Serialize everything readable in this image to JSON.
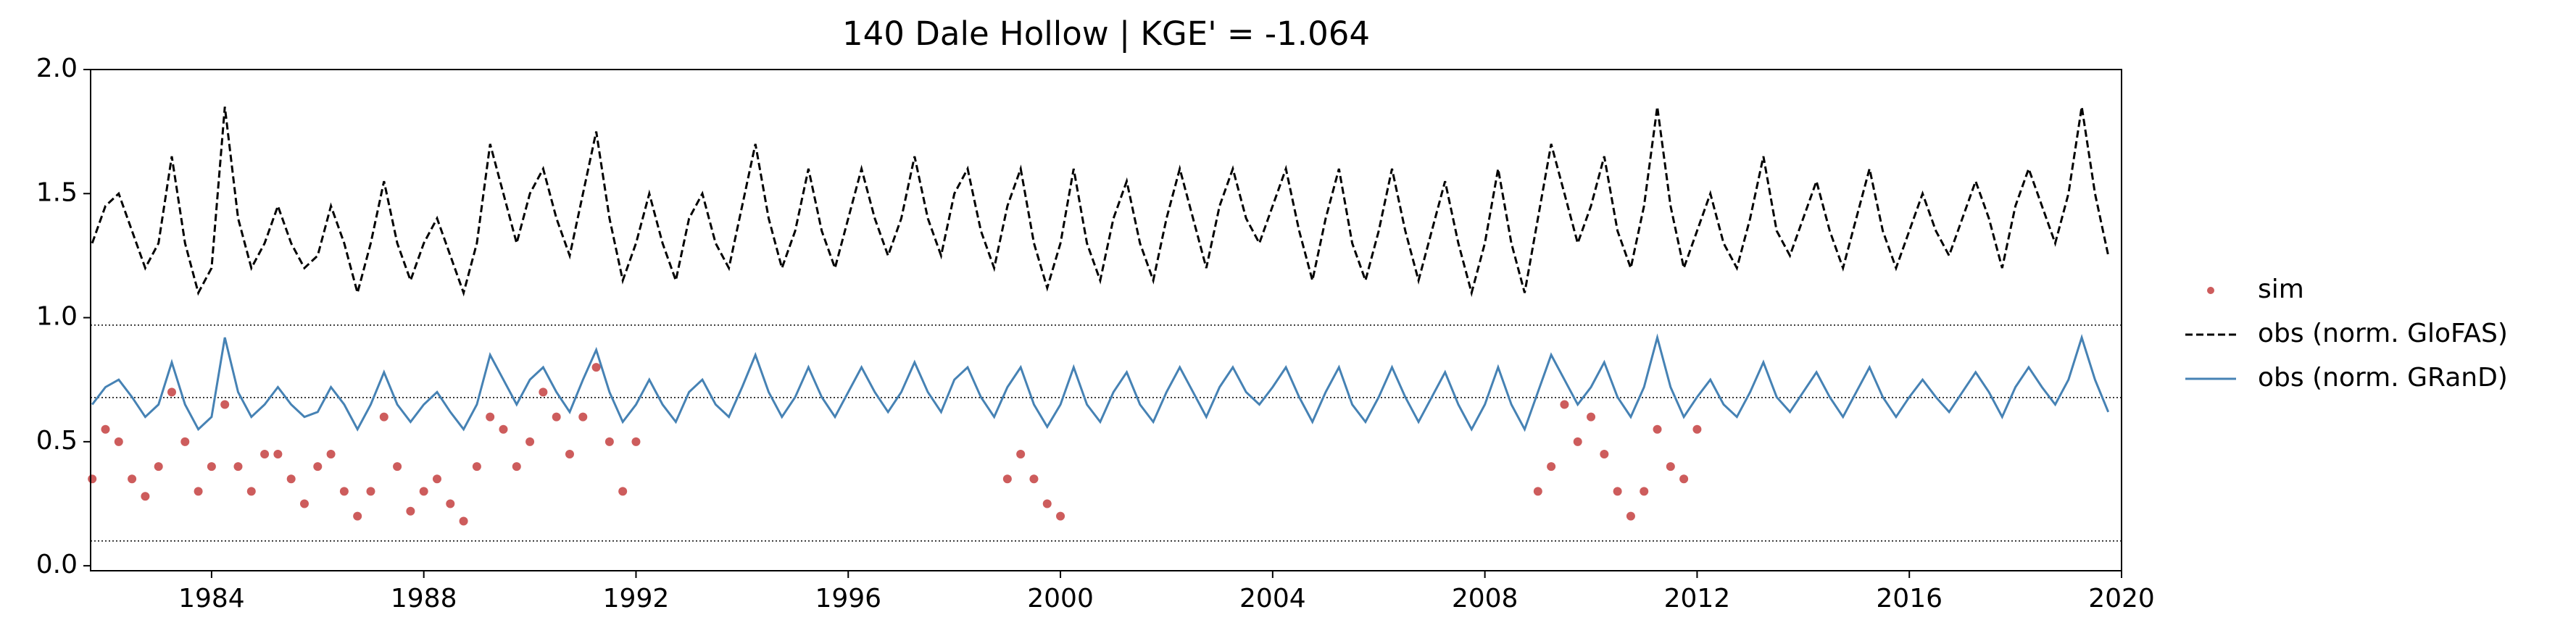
{
  "chart_data": {
    "type": "line",
    "title": "140  Dale Hollow | KGE' = -1.064",
    "xlim": [
      1981.72,
      2020
    ],
    "xticks": [
      1984,
      1988,
      1992,
      1996,
      2000,
      2004,
      2008,
      2012,
      2016,
      2020
    ],
    "ylim": [
      -0.02,
      2.0
    ],
    "yticks": [
      {
        "value": 0,
        "label": "0.0"
      },
      0.5,
      {
        "value": 1,
        "label": "1.0"
      },
      1.5,
      {
        "value": 2,
        "label": "2.0"
      }
    ],
    "hlines": [
      0.97,
      0.678,
      0.1
    ],
    "x": [
      1981.75,
      1982,
      1982.25,
      1982.5,
      1982.75,
      1983,
      1983.25,
      1983.5,
      1983.75,
      1984,
      1984.25,
      1984.5,
      1984.75,
      1985,
      1985.25,
      1985.5,
      1985.75,
      1986,
      1986.25,
      1986.5,
      1986.75,
      1987,
      1987.25,
      1987.5,
      1987.75,
      1988,
      1988.25,
      1988.5,
      1988.75,
      1989,
      1989.25,
      1989.5,
      1989.75,
      1990,
      1990.25,
      1990.5,
      1990.75,
      1991,
      1991.25,
      1991.5,
      1991.75,
      1992,
      1992.25,
      1992.5,
      1992.75,
      1993,
      1993.25,
      1993.5,
      1993.75,
      1994,
      1994.25,
      1994.5,
      1994.75,
      1995,
      1995.25,
      1995.5,
      1995.75,
      1996,
      1996.25,
      1996.5,
      1996.75,
      1997,
      1997.25,
      1997.5,
      1997.75,
      1998,
      1998.25,
      1998.5,
      1998.75,
      1999,
      1999.25,
      1999.5,
      1999.75,
      2000,
      2000.25,
      2000.5,
      2000.75,
      2001,
      2001.25,
      2001.5,
      2001.75,
      2002,
      2002.25,
      2002.5,
      2002.75,
      2003,
      2003.25,
      2003.5,
      2003.75,
      2004,
      2004.25,
      2004.5,
      2004.75,
      2005,
      2005.25,
      2005.5,
      2005.75,
      2006,
      2006.25,
      2006.5,
      2006.75,
      2007,
      2007.25,
      2007.5,
      2007.75,
      2008,
      2008.25,
      2008.5,
      2008.75,
      2009,
      2009.25,
      2009.5,
      2009.75,
      2010,
      2010.25,
      2010.5,
      2010.75,
      2011,
      2011.25,
      2011.5,
      2011.75,
      2012,
      2012.25,
      2012.5,
      2012.75,
      2013,
      2013.25,
      2013.5,
      2013.75,
      2014,
      2014.25,
      2014.5,
      2014.75,
      2015,
      2015.25,
      2015.5,
      2015.75,
      2016,
      2016.25,
      2016.5,
      2016.75,
      2017,
      2017.25,
      2017.5,
      2017.75,
      2018,
      2018.25,
      2018.5,
      2018.75,
      2019,
      2019.25,
      2019.5,
      2019.75
    ],
    "series": [
      {
        "name": "sim",
        "color": "#cd5c5c",
        "style": "points",
        "values": [
          0.35,
          0.55,
          0.5,
          0.35,
          0.28,
          0.4,
          0.7,
          0.5,
          0.3,
          0.4,
          0.65,
          0.4,
          0.3,
          0.45,
          0.45,
          0.35,
          0.25,
          0.4,
          0.45,
          0.3,
          0.2,
          0.3,
          0.6,
          0.4,
          0.22,
          0.3,
          0.35,
          0.25,
          0.18,
          0.4,
          0.6,
          0.55,
          0.4,
          0.5,
          0.7,
          0.6,
          0.45,
          0.6,
          0.8,
          0.5,
          0.3,
          0.5,
          null,
          null,
          null,
          null,
          null,
          null,
          null,
          null,
          null,
          null,
          null,
          null,
          null,
          null,
          null,
          null,
          null,
          null,
          null,
          null,
          null,
          null,
          null,
          null,
          null,
          null,
          null,
          0.35,
          0.45,
          0.35,
          0.25,
          0.2,
          null,
          null,
          null,
          null,
          null,
          null,
          null,
          null,
          null,
          null,
          null,
          null,
          null,
          null,
          null,
          null,
          null,
          null,
          null,
          null,
          null,
          null,
          null,
          null,
          null,
          null,
          null,
          null,
          null,
          null,
          null,
          null,
          null,
          null,
          null,
          0.3,
          0.4,
          0.65,
          0.5,
          0.6,
          0.45,
          0.3,
          0.2,
          0.3,
          0.55,
          0.4,
          0.35,
          0.55,
          null,
          null,
          null,
          null,
          null,
          null,
          null,
          null,
          null,
          null,
          null,
          null,
          null,
          null,
          null,
          null,
          null,
          null,
          null,
          null,
          null,
          null,
          null,
          null,
          null,
          null,
          null,
          null,
          null,
          null,
          null
        ]
      },
      {
        "name": "obs (norm. GloFAS)",
        "color": "#000000",
        "style": "dashed",
        "values": [
          1.3,
          1.45,
          1.5,
          1.35,
          1.2,
          1.3,
          1.65,
          1.3,
          1.1,
          1.2,
          1.85,
          1.4,
          1.2,
          1.3,
          1.45,
          1.3,
          1.2,
          1.25,
          1.45,
          1.3,
          1.1,
          1.3,
          1.55,
          1.3,
          1.15,
          1.3,
          1.4,
          1.25,
          1.1,
          1.3,
          1.7,
          1.5,
          1.3,
          1.5,
          1.6,
          1.4,
          1.25,
          1.5,
          1.75,
          1.4,
          1.15,
          1.3,
          1.5,
          1.3,
          1.15,
          1.4,
          1.5,
          1.3,
          1.2,
          1.45,
          1.7,
          1.4,
          1.2,
          1.35,
          1.6,
          1.35,
          1.2,
          1.4,
          1.6,
          1.4,
          1.25,
          1.4,
          1.65,
          1.4,
          1.25,
          1.5,
          1.6,
          1.35,
          1.2,
          1.45,
          1.6,
          1.3,
          1.12,
          1.3,
          1.6,
          1.3,
          1.15,
          1.4,
          1.55,
          1.3,
          1.15,
          1.4,
          1.6,
          1.4,
          1.2,
          1.45,
          1.6,
          1.4,
          1.3,
          1.45,
          1.6,
          1.35,
          1.15,
          1.4,
          1.6,
          1.3,
          1.15,
          1.35,
          1.6,
          1.35,
          1.15,
          1.35,
          1.55,
          1.3,
          1.1,
          1.3,
          1.6,
          1.3,
          1.1,
          1.4,
          1.7,
          1.5,
          1.3,
          1.45,
          1.65,
          1.35,
          1.2,
          1.45,
          1.85,
          1.45,
          1.2,
          1.35,
          1.5,
          1.3,
          1.2,
          1.4,
          1.65,
          1.35,
          1.25,
          1.4,
          1.55,
          1.35,
          1.2,
          1.4,
          1.6,
          1.35,
          1.2,
          1.35,
          1.5,
          1.35,
          1.25,
          1.4,
          1.55,
          1.4,
          1.2,
          1.45,
          1.6,
          1.45,
          1.3,
          1.5,
          1.85,
          1.5,
          1.25
        ]
      },
      {
        "name": "obs (norm. GRanD)",
        "color": "#4682b4",
        "style": "solid",
        "values": [
          0.65,
          0.72,
          0.75,
          0.68,
          0.6,
          0.65,
          0.82,
          0.65,
          0.55,
          0.6,
          0.92,
          0.7,
          0.6,
          0.65,
          0.72,
          0.65,
          0.6,
          0.62,
          0.72,
          0.65,
          0.55,
          0.65,
          0.78,
          0.65,
          0.58,
          0.65,
          0.7,
          0.62,
          0.55,
          0.65,
          0.85,
          0.75,
          0.65,
          0.75,
          0.8,
          0.7,
          0.62,
          0.75,
          0.87,
          0.7,
          0.58,
          0.65,
          0.75,
          0.65,
          0.58,
          0.7,
          0.75,
          0.65,
          0.6,
          0.72,
          0.85,
          0.7,
          0.6,
          0.68,
          0.8,
          0.68,
          0.6,
          0.7,
          0.8,
          0.7,
          0.62,
          0.7,
          0.82,
          0.7,
          0.62,
          0.75,
          0.8,
          0.68,
          0.6,
          0.72,
          0.8,
          0.65,
          0.56,
          0.65,
          0.8,
          0.65,
          0.58,
          0.7,
          0.78,
          0.65,
          0.58,
          0.7,
          0.8,
          0.7,
          0.6,
          0.72,
          0.8,
          0.7,
          0.65,
          0.72,
          0.8,
          0.68,
          0.58,
          0.7,
          0.8,
          0.65,
          0.58,
          0.68,
          0.8,
          0.68,
          0.58,
          0.68,
          0.78,
          0.65,
          0.55,
          0.65,
          0.8,
          0.65,
          0.55,
          0.7,
          0.85,
          0.75,
          0.65,
          0.72,
          0.82,
          0.68,
          0.6,
          0.72,
          0.92,
          0.72,
          0.6,
          0.68,
          0.75,
          0.65,
          0.6,
          0.7,
          0.82,
          0.68,
          0.62,
          0.7,
          0.78,
          0.68,
          0.6,
          0.7,
          0.8,
          0.68,
          0.6,
          0.68,
          0.75,
          0.68,
          0.62,
          0.7,
          0.78,
          0.7,
          0.6,
          0.72,
          0.8,
          0.72,
          0.65,
          0.75,
          0.92,
          0.75,
          0.62
        ]
      }
    ]
  }
}
